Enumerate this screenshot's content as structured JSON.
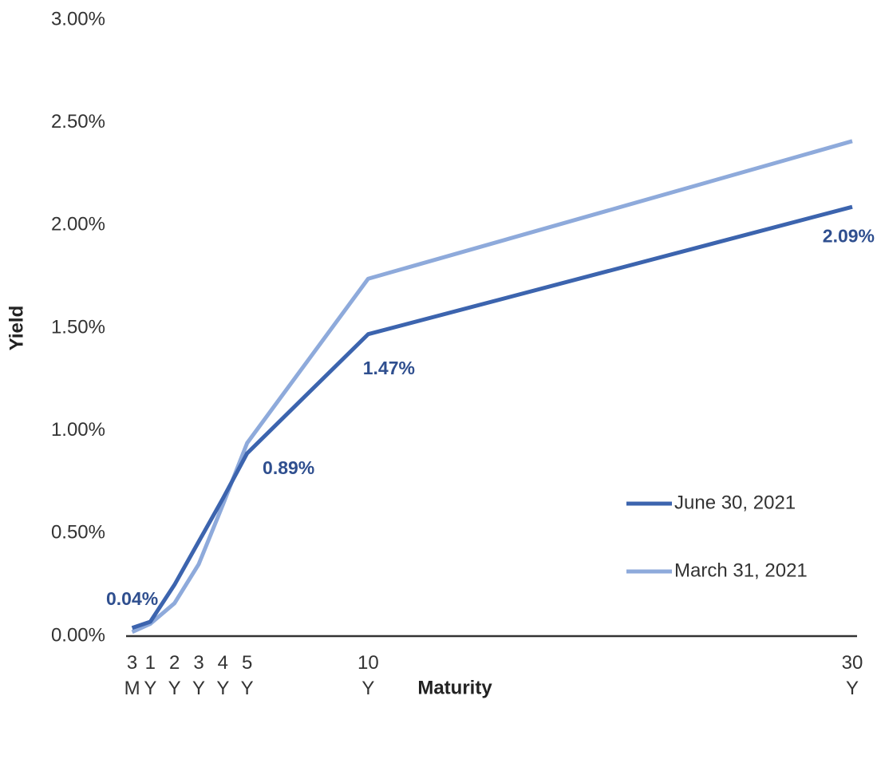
{
  "chart_data": {
    "type": "line",
    "x_label": "Maturity",
    "y_label": "Yield",
    "x": [
      0.25,
      1,
      2,
      3,
      4,
      5,
      10,
      30
    ],
    "xlim": [
      0,
      30
    ],
    "xticks": [
      {
        "value": 0.25,
        "label": "3M"
      },
      {
        "value": 1,
        "label": "1Y"
      },
      {
        "value": 2,
        "label": "2Y"
      },
      {
        "value": 3,
        "label": "3Y"
      },
      {
        "value": 4,
        "label": "4Y"
      },
      {
        "value": 5,
        "label": "5Y"
      },
      {
        "value": 10,
        "label": "10Y"
      },
      {
        "value": 30,
        "label": "30Y"
      }
    ],
    "ylim": [
      0,
      3
    ],
    "yticks": [
      {
        "value": 0,
        "label": "0.00%"
      },
      {
        "value": 0.5,
        "label": "0.50%"
      },
      {
        "value": 1,
        "label": "1.00%"
      },
      {
        "value": 1.5,
        "label": "1.50%"
      },
      {
        "value": 2,
        "label": "2.00%"
      },
      {
        "value": 2.5,
        "label": "2.50%"
      },
      {
        "value": 3,
        "label": "3.00%"
      }
    ],
    "grid": false,
    "legend": "right",
    "series": [
      {
        "name": "June 30, 2021",
        "color": "#3c64ae",
        "values": [
          0.04,
          0.07,
          0.25,
          0.46,
          0.67,
          0.89,
          1.47,
          2.09
        ],
        "value_labels": [
          "0.04%",
          null,
          null,
          null,
          null,
          "0.89%",
          "1.47%",
          "2.09%"
        ]
      },
      {
        "name": "March 31, 2021",
        "color": "#8eaadb",
        "values": [
          0.02,
          0.06,
          0.16,
          0.35,
          0.64,
          0.94,
          1.74,
          2.41
        ]
      }
    ]
  }
}
